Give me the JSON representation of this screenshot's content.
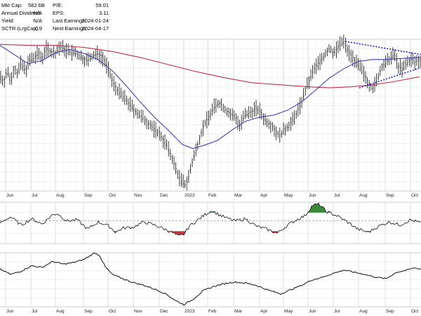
{
  "stats": {
    "left": [
      {
        "label": "Mkt Cap:",
        "value": "582.6B"
      },
      {
        "label": "Annual Dividend:",
        "value": "N/A"
      },
      {
        "label": "Yield:",
        "value": "N/A"
      },
      {
        "label": "SCTR (LrgCap):",
        "value": "0.9"
      }
    ],
    "right": [
      {
        "label": "P/E:",
        "value": "59.01"
      },
      {
        "label": "EPS:",
        "value": "3.11"
      },
      {
        "label": "Last Earnings:",
        "value": "2024-01-24"
      },
      {
        "label": "Next Earnings:",
        "value": "2024-04-17"
      }
    ]
  },
  "chart_data": [
    {
      "type": "ohlc",
      "panel": "price",
      "x_tick_labels": [
        "Jun",
        "Jul",
        "Aug",
        "Sep",
        "Oct",
        "Nov",
        "Dec",
        "2023",
        "Feb",
        "Mar",
        "Apr",
        "May",
        "Jun",
        "Jul",
        "Aug",
        "Sep",
        "Oct"
      ],
      "price_series_index_values": [
        [
          0,
          64
        ],
        [
          5,
          58
        ],
        [
          10,
          68
        ],
        [
          16,
          59
        ],
        [
          20,
          73
        ],
        [
          25,
          66
        ],
        [
          30,
          76
        ],
        [
          36,
          69
        ],
        [
          42,
          79
        ],
        [
          48,
          81
        ],
        [
          55,
          86
        ],
        [
          60,
          81
        ],
        [
          65,
          91
        ],
        [
          72,
          88
        ],
        [
          78,
          85
        ],
        [
          85,
          93
        ],
        [
          92,
          90
        ],
        [
          100,
          87
        ],
        [
          108,
          86
        ],
        [
          116,
          82
        ],
        [
          124,
          79
        ],
        [
          132,
          83
        ],
        [
          140,
          86
        ],
        [
          148,
          81
        ],
        [
          152,
          74
        ],
        [
          158,
          62
        ],
        [
          166,
          51
        ],
        [
          174,
          44
        ],
        [
          182,
          38
        ],
        [
          190,
          31
        ],
        [
          200,
          24
        ],
        [
          210,
          18
        ],
        [
          220,
          11
        ],
        [
          228,
          6
        ],
        [
          236,
          -3
        ],
        [
          244,
          -15
        ],
        [
          252,
          -31
        ],
        [
          258,
          -40
        ],
        [
          264,
          -44
        ],
        [
          268,
          -38
        ],
        [
          274,
          -22
        ],
        [
          280,
          -8
        ],
        [
          285,
          4
        ],
        [
          290,
          14
        ],
        [
          298,
          24
        ],
        [
          306,
          34
        ],
        [
          314,
          37
        ],
        [
          320,
          31
        ],
        [
          328,
          26
        ],
        [
          336,
          23
        ],
        [
          342,
          14
        ],
        [
          348,
          24
        ],
        [
          356,
          27
        ],
        [
          364,
          32
        ],
        [
          370,
          29
        ],
        [
          378,
          20
        ],
        [
          386,
          16
        ],
        [
          392,
          10
        ],
        [
          398,
          4
        ],
        [
          404,
          9
        ],
        [
          410,
          14
        ],
        [
          416,
          18
        ],
        [
          422,
          26
        ],
        [
          428,
          35
        ],
        [
          434,
          47
        ],
        [
          440,
          58
        ],
        [
          446,
          68
        ],
        [
          452,
          75
        ],
        [
          458,
          80
        ],
        [
          464,
          86
        ],
        [
          470,
          91
        ],
        [
          476,
          86
        ],
        [
          482,
          93
        ],
        [
          490,
          98
        ],
        [
          496,
          88
        ],
        [
          502,
          83
        ],
        [
          508,
          76
        ],
        [
          514,
          71
        ],
        [
          520,
          64
        ],
        [
          526,
          56
        ],
        [
          532,
          51
        ],
        [
          538,
          61
        ],
        [
          544,
          73
        ],
        [
          550,
          76
        ],
        [
          556,
          81
        ],
        [
          562,
          85
        ],
        [
          568,
          73
        ],
        [
          574,
          70
        ],
        [
          580,
          77
        ],
        [
          586,
          80
        ],
        [
          592,
          77
        ],
        [
          598,
          80
        ]
      ],
      "moving_average_short": [
        [
          0,
          94
        ],
        [
          20,
          85
        ],
        [
          40,
          76
        ],
        [
          60,
          79
        ],
        [
          80,
          87
        ],
        [
          100,
          90
        ],
        [
          120,
          86
        ],
        [
          140,
          80
        ],
        [
          160,
          69
        ],
        [
          180,
          54
        ],
        [
          200,
          38
        ],
        [
          220,
          23
        ],
        [
          240,
          10
        ],
        [
          260,
          -4
        ],
        [
          275,
          -8
        ],
        [
          290,
          -5
        ],
        [
          310,
          0
        ],
        [
          330,
          10
        ],
        [
          350,
          19
        ],
        [
          370,
          23
        ],
        [
          390,
          25
        ],
        [
          410,
          30
        ],
        [
          430,
          38
        ],
        [
          450,
          50
        ],
        [
          470,
          62
        ],
        [
          490,
          71
        ],
        [
          510,
          78
        ],
        [
          530,
          80
        ],
        [
          550,
          80
        ],
        [
          570,
          81
        ],
        [
          598,
          82
        ]
      ],
      "moving_average_long": [
        [
          0,
          95
        ],
        [
          40,
          94
        ],
        [
          80,
          94
        ],
        [
          120,
          92
        ],
        [
          160,
          88
        ],
        [
          200,
          82
        ],
        [
          240,
          75
        ],
        [
          280,
          68
        ],
        [
          320,
          62
        ],
        [
          360,
          57
        ],
        [
          400,
          55
        ],
        [
          440,
          53
        ],
        [
          470,
          52
        ],
        [
          500,
          53
        ],
        [
          530,
          55
        ],
        [
          560,
          58
        ],
        [
          598,
          63
        ]
      ],
      "trendline_upper": [
        [
          492,
          98
        ],
        [
          600,
          85
        ]
      ],
      "trendline_lower": [
        [
          512,
          52
        ],
        [
          600,
          72
        ]
      ],
      "y_range": [
        -50,
        100
      ]
    },
    {
      "type": "line",
      "panel": "oscillator",
      "values": [
        [
          0,
          0
        ],
        [
          15,
          6
        ],
        [
          30,
          -2
        ],
        [
          45,
          4
        ],
        [
          60,
          -1
        ],
        [
          75,
          8
        ],
        [
          82,
          9
        ],
        [
          95,
          2
        ],
        [
          110,
          3
        ],
        [
          125,
          -6
        ],
        [
          140,
          1
        ],
        [
          155,
          -3
        ],
        [
          165,
          -9
        ],
        [
          175,
          -5
        ],
        [
          190,
          -4
        ],
        [
          205,
          1
        ],
        [
          220,
          -2
        ],
        [
          235,
          -6
        ],
        [
          245,
          -9
        ],
        [
          255,
          -13
        ],
        [
          262,
          -11
        ],
        [
          270,
          -3
        ],
        [
          280,
          2
        ],
        [
          292,
          8
        ],
        [
          302,
          12
        ],
        [
          312,
          8
        ],
        [
          322,
          5
        ],
        [
          335,
          2
        ],
        [
          350,
          4
        ],
        [
          365,
          -3
        ],
        [
          380,
          -6
        ],
        [
          395,
          -10
        ],
        [
          410,
          -2
        ],
        [
          425,
          4
        ],
        [
          435,
          7
        ],
        [
          445,
          17
        ],
        [
          455,
          18
        ],
        [
          465,
          11
        ],
        [
          480,
          7
        ],
        [
          495,
          1
        ],
        [
          510,
          -6
        ],
        [
          525,
          -9
        ],
        [
          540,
          -3
        ],
        [
          555,
          1
        ],
        [
          570,
          -2
        ],
        [
          585,
          3
        ],
        [
          600,
          0
        ]
      ],
      "reference_level": 2,
      "y_range": [
        -20,
        20
      ]
    },
    {
      "type": "line",
      "panel": "relative",
      "values": [
        [
          0,
          70
        ],
        [
          15,
          60
        ],
        [
          30,
          66
        ],
        [
          45,
          76
        ],
        [
          60,
          73
        ],
        [
          75,
          84
        ],
        [
          90,
          79
        ],
        [
          105,
          82
        ],
        [
          120,
          88
        ],
        [
          135,
          100
        ],
        [
          142,
          95
        ],
        [
          150,
          74
        ],
        [
          160,
          60
        ],
        [
          175,
          52
        ],
        [
          190,
          45
        ],
        [
          205,
          40
        ],
        [
          220,
          33
        ],
        [
          235,
          25
        ],
        [
          250,
          12
        ],
        [
          262,
          4
        ],
        [
          275,
          14
        ],
        [
          290,
          30
        ],
        [
          305,
          38
        ],
        [
          320,
          43
        ],
        [
          335,
          46
        ],
        [
          350,
          44
        ],
        [
          365,
          40
        ],
        [
          380,
          32
        ],
        [
          395,
          26
        ],
        [
          400,
          24
        ],
        [
          415,
          32
        ],
        [
          430,
          40
        ],
        [
          445,
          50
        ],
        [
          460,
          55
        ],
        [
          475,
          62
        ],
        [
          490,
          68
        ],
        [
          505,
          64
        ],
        [
          520,
          60
        ],
        [
          535,
          55
        ],
        [
          550,
          52
        ],
        [
          565,
          64
        ],
        [
          580,
          68
        ],
        [
          590,
          72
        ],
        [
          600,
          70
        ]
      ],
      "y_range": [
        0,
        100
      ]
    }
  ]
}
